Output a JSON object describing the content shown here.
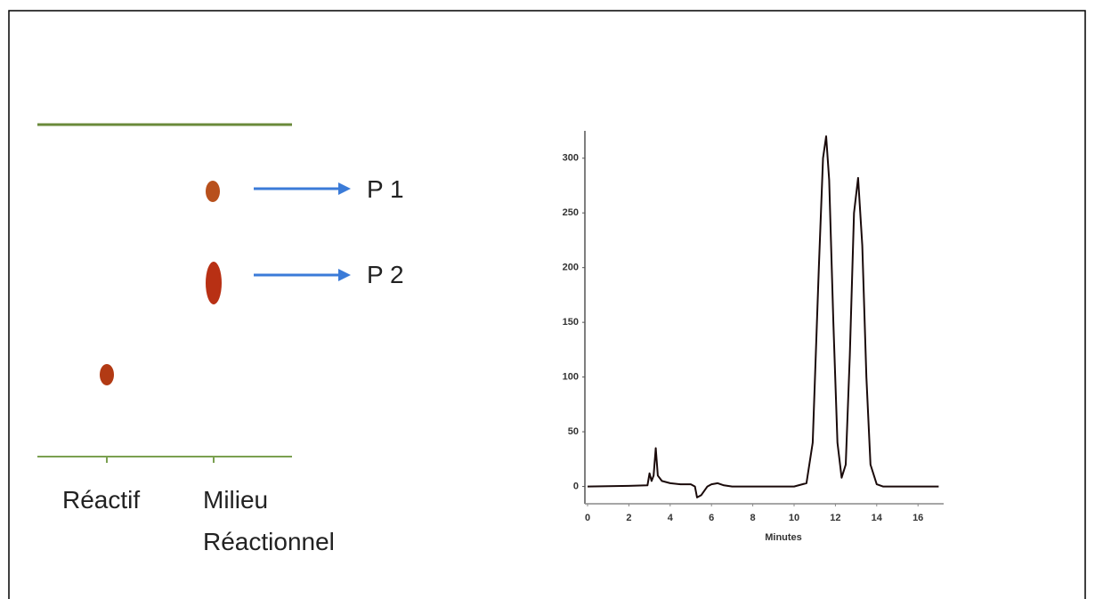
{
  "tlc": {
    "products": [
      "P 1",
      "P 2"
    ],
    "lanes": [
      [
        "Réactif"
      ],
      [
        "Milieu",
        "Réactionnel"
      ]
    ]
  },
  "chart_data": {
    "type": "line",
    "xlabel": "Minutes",
    "x": [
      0,
      2,
      2.9,
      3.0,
      3.1,
      3.2,
      3.3,
      3.4,
      3.6,
      4,
      4.5,
      5,
      5.2,
      5.3,
      5.5,
      5.8,
      6,
      6.3,
      6.6,
      7,
      10,
      10.6,
      10.9,
      11.2,
      11.4,
      11.55,
      11.7,
      11.9,
      12.1,
      12.3,
      12.5,
      12.7,
      12.9,
      13.1,
      13.3,
      13.5,
      13.7,
      14,
      14.3,
      17
    ],
    "series": [
      {
        "color": "#1a0a0a",
        "values": [
          0,
          0.5,
          1,
          12,
          5,
          10,
          35,
          10,
          5,
          3,
          2,
          2,
          0,
          -10,
          -8,
          0,
          2,
          3,
          1,
          0,
          0,
          3,
          40,
          200,
          300,
          320,
          280,
          150,
          40,
          8,
          20,
          120,
          250,
          282,
          220,
          100,
          20,
          2,
          0,
          0
        ]
      }
    ],
    "xlim": [
      0,
      17.3
    ],
    "ylim": [
      -15,
      325
    ],
    "xticks": [
      0,
      2,
      4,
      6,
      8,
      10,
      12,
      14,
      16
    ],
    "yticks": [
      0,
      50,
      100,
      150,
      200,
      250,
      300
    ]
  }
}
